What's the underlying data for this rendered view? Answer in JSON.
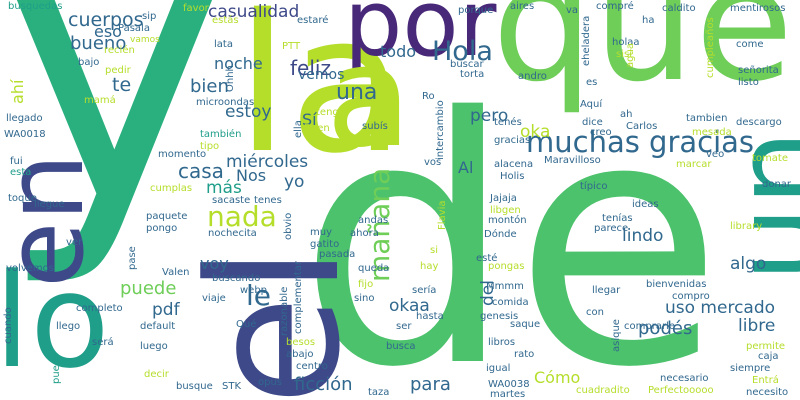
{
  "palette": {
    "yellow_green": "#b5de2b",
    "green": "#6ece58",
    "mint": "#35b779",
    "teal": "#1f9e89",
    "blue_teal": "#26828e",
    "slate": "#31688e",
    "indigo": "#3e4989",
    "purple": "#482878",
    "deep_purple": "#440154"
  },
  "words": [
    {
      "text": "y",
      "color": "#2ab07f"
    },
    {
      "text": "de",
      "color": "#4cc26c"
    },
    {
      "text": "que",
      "color": "#6ece58"
    },
    {
      "text": "la",
      "color": "#b5de2b"
    },
    {
      "text": "por",
      "color": "#482878"
    },
    {
      "text": "en",
      "color": "#3e4989"
    },
    {
      "text": "el",
      "color": "#3e4989"
    },
    {
      "text": "lo",
      "color": "#1f9e89"
    },
    {
      "text": "un",
      "color": "#1f9e89"
    },
    {
      "text": "a",
      "color": "#b5de2b"
    },
    {
      "text": "muchas gracias",
      "color": "#31688e"
    },
    {
      "text": "Hola",
      "color": "#31688e"
    },
    {
      "text": "nada",
      "color": "#b5de2b"
    },
    {
      "text": "mañana",
      "color": "#6ece58"
    },
    {
      "text": "le",
      "color": "#31688e"
    },
    {
      "text": "casualidad",
      "color": "#3e4989"
    },
    {
      "text": "cuerpos",
      "color": "#31688e"
    },
    {
      "text": "bueno",
      "color": "#31688e"
    },
    {
      "text": "te",
      "color": "#31688e"
    },
    {
      "text": "noche",
      "color": "#31688e"
    },
    {
      "text": "feliz",
      "color": "#3e4989"
    },
    {
      "text": "una",
      "color": "#31688e"
    },
    {
      "text": "bien",
      "color": "#31688e"
    },
    {
      "text": "estoy",
      "color": "#31688e"
    },
    {
      "text": "casa",
      "color": "#31688e"
    },
    {
      "text": "más",
      "color": "#1f9e89"
    },
    {
      "text": "puede",
      "color": "#6ece58"
    },
    {
      "text": "pdf",
      "color": "#31688e"
    },
    {
      "text": "miércoles",
      "color": "#31688e"
    },
    {
      "text": "yo",
      "color": "#31688e"
    },
    {
      "text": "ficción",
      "color": "#31688e"
    },
    {
      "text": "para",
      "color": "#31688e"
    },
    {
      "text": "lindo",
      "color": "#31688e"
    },
    {
      "text": "algo",
      "color": "#31688e"
    },
    {
      "text": "uso mercado",
      "color": "#31688e"
    },
    {
      "text": "libre",
      "color": "#31688e"
    },
    {
      "text": "podés",
      "color": "#31688e"
    },
    {
      "text": "pero",
      "color": "#31688e"
    },
    {
      "text": "okaa",
      "color": "#31688e"
    },
    {
      "text": "oka",
      "color": "#b5de2b"
    },
    {
      "text": "del",
      "color": "#31688e"
    },
    {
      "text": "Cómo",
      "color": "#b5de2b"
    },
    {
      "text": "voy",
      "color": "#31688e"
    },
    {
      "text": "todo",
      "color": "#31688e"
    },
    {
      "text": "Al",
      "color": "#31688e"
    },
    {
      "text": "Sí",
      "color": "#31688e"
    },
    {
      "text": "vemos",
      "color": "#31688e"
    },
    {
      "text": "Nos",
      "color": "#31688e"
    },
    {
      "text": "ahí",
      "color": "#b5de2b"
    },
    {
      "text": "eso",
      "color": "#31688e"
    },
    {
      "text": "busquedas",
      "color": "#1f9e89"
    },
    {
      "text": "sip",
      "color": "#31688e"
    },
    {
      "text": "favor",
      "color": "#b5de2b"
    },
    {
      "text": "estás",
      "color": "#b5de2b"
    },
    {
      "text": "estaré",
      "color": "#31688e"
    },
    {
      "text": "porque",
      "color": "#31688e"
    },
    {
      "text": "aires",
      "color": "#31688e"
    },
    {
      "text": "compré",
      "color": "#31688e"
    },
    {
      "text": "caldito",
      "color": "#31688e"
    },
    {
      "text": "mentirosos",
      "color": "#31688e"
    },
    {
      "text": "Pasala",
      "color": "#31688e"
    },
    {
      "text": "recién",
      "color": "#b5de2b"
    },
    {
      "text": "vamos",
      "color": "#b5de2b"
    },
    {
      "text": "lata",
      "color": "#31688e"
    },
    {
      "text": "PTT",
      "color": "#b5de2b"
    },
    {
      "text": "bajo",
      "color": "#31688e"
    },
    {
      "text": "pedir",
      "color": "#b5de2b"
    },
    {
      "text": "mamá",
      "color": "#b5de2b"
    },
    {
      "text": "llegado",
      "color": "#31688e"
    },
    {
      "text": "Ohhh",
      "color": "#31688e"
    },
    {
      "text": "microondas",
      "color": "#31688e"
    },
    {
      "text": "tengo",
      "color": "#b5de2b"
    },
    {
      "text": "Buen",
      "color": "#b5de2b"
    },
    {
      "text": "ella",
      "color": "#31688e"
    },
    {
      "text": "WA0018",
      "color": "#31688e"
    },
    {
      "text": "también",
      "color": "#1f9e89"
    },
    {
      "text": "tipo",
      "color": "#b5de2b"
    },
    {
      "text": "momento",
      "color": "#31688e"
    },
    {
      "text": "fui",
      "color": "#31688e"
    },
    {
      "text": "esta",
      "color": "#1f9e89"
    },
    {
      "text": "cumplas",
      "color": "#b5de2b"
    },
    {
      "text": "toque",
      "color": "#31688e"
    },
    {
      "text": "llegue",
      "color": "#31688e"
    },
    {
      "text": "sacaste",
      "color": "#31688e"
    },
    {
      "text": "tenes",
      "color": "#31688e"
    },
    {
      "text": "obvio",
      "color": "#31688e"
    },
    {
      "text": "paquete",
      "color": "#31688e"
    },
    {
      "text": "pongo",
      "color": "#31688e"
    },
    {
      "text": "nochecita",
      "color": "#31688e"
    },
    {
      "text": "ver",
      "color": "#31688e"
    },
    {
      "text": "volvemos",
      "color": "#31688e"
    },
    {
      "text": "pase",
      "color": "#31688e"
    },
    {
      "text": "Valen",
      "color": "#31688e"
    },
    {
      "text": "buscando",
      "color": "#31688e"
    },
    {
      "text": "viaje",
      "color": "#31688e"
    },
    {
      "text": "webp",
      "color": "#31688e"
    },
    {
      "text": "completo",
      "color": "#31688e"
    },
    {
      "text": "default",
      "color": "#31688e"
    },
    {
      "text": "llego",
      "color": "#31688e"
    },
    {
      "text": "Qué",
      "color": "#31688e"
    },
    {
      "text": "será",
      "color": "#31688e"
    },
    {
      "text": "luego",
      "color": "#31688e"
    },
    {
      "text": "decir",
      "color": "#b5de2b"
    },
    {
      "text": "busque",
      "color": "#31688e"
    },
    {
      "text": "STK",
      "color": "#31688e"
    },
    {
      "text": "opus",
      "color": "#31688e"
    },
    {
      "text": "cuando",
      "color": "#31688e"
    },
    {
      "text": "puedo",
      "color": "#1f9e89"
    },
    {
      "text": "razonable",
      "color": "#31688e"
    },
    {
      "text": "complementar",
      "color": "#31688e"
    },
    {
      "text": "besos",
      "color": "#b5de2b"
    },
    {
      "text": "abajo",
      "color": "#31688e"
    },
    {
      "text": "centro",
      "color": "#31688e"
    },
    {
      "text": "taza",
      "color": "#31688e"
    },
    {
      "text": "muy",
      "color": "#31688e"
    },
    {
      "text": "gatito",
      "color": "#31688e"
    },
    {
      "text": "andas",
      "color": "#31688e"
    },
    {
      "text": "ahora",
      "color": "#31688e"
    },
    {
      "text": "pasada",
      "color": "#31688e"
    },
    {
      "text": "queda",
      "color": "#31688e"
    },
    {
      "text": "fijo",
      "color": "#b5de2b"
    },
    {
      "text": "sino",
      "color": "#31688e"
    },
    {
      "text": "si",
      "color": "#b5de2b"
    },
    {
      "text": "hay",
      "color": "#b5de2b"
    },
    {
      "text": "sería",
      "color": "#31688e"
    },
    {
      "text": "hasta",
      "color": "#31688e"
    },
    {
      "text": "ser",
      "color": "#31688e"
    },
    {
      "text": "busca",
      "color": "#31688e"
    },
    {
      "text": "Flavia",
      "color": "#b5de2b"
    },
    {
      "text": "Ro",
      "color": "#31688e"
    },
    {
      "text": "intercambio",
      "color": "#31688e"
    },
    {
      "text": "subís",
      "color": "#31688e"
    },
    {
      "text": "vos",
      "color": "#31688e"
    },
    {
      "text": "Holis",
      "color": "#31688e"
    },
    {
      "text": "Jajaja",
      "color": "#31688e"
    },
    {
      "text": "montón",
      "color": "#31688e"
    },
    {
      "text": "Dónde",
      "color": "#31688e"
    },
    {
      "text": "esté",
      "color": "#31688e"
    },
    {
      "text": "pongas",
      "color": "#b5de2b"
    },
    {
      "text": "Mmmm",
      "color": "#31688e"
    },
    {
      "text": "comida",
      "color": "#31688e"
    },
    {
      "text": "genesis",
      "color": "#31688e"
    },
    {
      "text": "libros",
      "color": "#31688e"
    },
    {
      "text": "rato",
      "color": "#31688e"
    },
    {
      "text": "igual",
      "color": "#31688e"
    },
    {
      "text": "WA0038",
      "color": "#31688e"
    },
    {
      "text": "martes",
      "color": "#31688e"
    },
    {
      "text": "saque",
      "color": "#31688e"
    },
    {
      "text": "con",
      "color": "#31688e"
    },
    {
      "text": "asique",
      "color": "#31688e"
    },
    {
      "text": "llegar",
      "color": "#31688e"
    },
    {
      "text": "bienvenidas",
      "color": "#31688e"
    },
    {
      "text": "compro",
      "color": "#31688e"
    },
    {
      "text": "comprarle",
      "color": "#31688e"
    },
    {
      "text": "permite",
      "color": "#b5de2b"
    },
    {
      "text": "necesario",
      "color": "#31688e"
    },
    {
      "text": "Entrá",
      "color": "#b5de2b"
    },
    {
      "text": "Perfectooooo",
      "color": "#b5de2b"
    },
    {
      "text": "cuadradito",
      "color": "#b5de2b"
    },
    {
      "text": "necesito",
      "color": "#31688e"
    },
    {
      "text": "siempre",
      "color": "#31688e"
    },
    {
      "text": "caja",
      "color": "#31688e"
    },
    {
      "text": "va",
      "color": "#31688e"
    },
    {
      "text": "buscar",
      "color": "#31688e"
    },
    {
      "text": "torta",
      "color": "#31688e"
    },
    {
      "text": "eheladera",
      "color": "#31688e"
    },
    {
      "text": "andro",
      "color": "#31688e"
    },
    {
      "text": "holaa",
      "color": "#31688e"
    },
    {
      "text": "sisi",
      "color": "#b5de2b"
    },
    {
      "text": "agua",
      "color": "#b5de2b"
    },
    {
      "text": "es",
      "color": "#31688e"
    },
    {
      "text": "cumpleaños",
      "color": "#b5de2b"
    },
    {
      "text": "señorita",
      "color": "#31688e"
    },
    {
      "text": "come",
      "color": "#31688e"
    },
    {
      "text": "listo",
      "color": "#31688e"
    },
    {
      "text": "ha",
      "color": "#31688e"
    },
    {
      "text": "Aquí",
      "color": "#31688e"
    },
    {
      "text": "tenés",
      "color": "#31688e"
    },
    {
      "text": "dice",
      "color": "#31688e"
    },
    {
      "text": "creo",
      "color": "#31688e"
    },
    {
      "text": "ah",
      "color": "#31688e"
    },
    {
      "text": "Carlos",
      "color": "#31688e"
    },
    {
      "text": "tambien",
      "color": "#31688e"
    },
    {
      "text": "descargo",
      "color": "#31688e"
    },
    {
      "text": "mesada",
      "color": "#b5de2b"
    },
    {
      "text": "gracias",
      "color": "#31688e"
    },
    {
      "text": "alacena",
      "color": "#31688e"
    },
    {
      "text": "Maravilloso",
      "color": "#31688e"
    },
    {
      "text": "típico",
      "color": "#31688e"
    },
    {
      "text": "marcar",
      "color": "#b5de2b"
    },
    {
      "text": "veo",
      "color": "#31688e"
    },
    {
      "text": "tomate",
      "color": "#b5de2b"
    },
    {
      "text": "donar",
      "color": "#31688e"
    },
    {
      "text": "libgen",
      "color": "#b5de2b"
    },
    {
      "text": "ideas",
      "color": "#31688e"
    },
    {
      "text": "tenías",
      "color": "#31688e"
    },
    {
      "text": "parece",
      "color": "#31688e"
    },
    {
      "text": "library",
      "color": "#b5de2b"
    }
  ]
}
